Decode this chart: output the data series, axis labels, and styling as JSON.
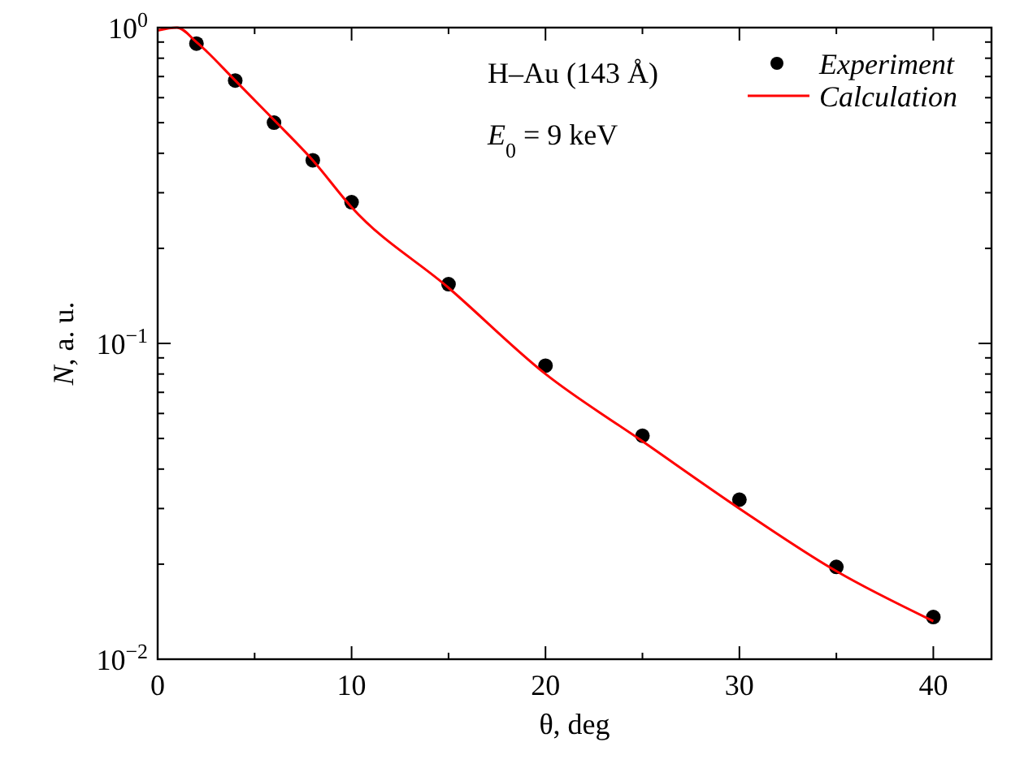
{
  "chart_data": {
    "type": "line",
    "xlabel": "θ, deg",
    "ylabel": "N, a. u.",
    "log": "y",
    "xlim": [
      0,
      43
    ],
    "ylim": [
      0.01,
      1
    ],
    "xticks": [
      0,
      {
        "value": 5,
        "label": null
      },
      10,
      {
        "value": 15,
        "label": null
      },
      20,
      {
        "value": 25,
        "label": null
      },
      30,
      {
        "value": 35,
        "label": null
      },
      40
    ],
    "yticks": [
      {
        "value": 0.01,
        "label": "10$^{−2}$"
      },
      {
        "value": 0.02,
        "label": null
      },
      {
        "value": 0.03,
        "label": null
      },
      {
        "value": 0.04,
        "label": null
      },
      {
        "value": 0.05,
        "label": null
      },
      {
        "value": 0.06,
        "label": null
      },
      {
        "value": 0.07,
        "label": null
      },
      {
        "value": 0.08,
        "label": null
      },
      {
        "value": 0.09,
        "label": null
      },
      {
        "value": 0.1,
        "label": "10$^{−1}$"
      },
      {
        "value": 0.2,
        "label": null
      },
      {
        "value": 0.3,
        "label": null
      },
      {
        "value": 0.4,
        "label": null
      },
      {
        "value": 0.5,
        "label": null
      },
      {
        "value": 0.6,
        "label": null
      },
      {
        "value": 0.7,
        "label": null
      },
      {
        "value": 0.8,
        "label": null
      },
      {
        "value": 0.9,
        "label": null
      },
      {
        "value": 1,
        "label": "10$^{0}$"
      }
    ],
    "grid": false,
    "legend": "top right",
    "annotations": [
      {
        "text": "H–Au (143 Å)"
      },
      {
        "text": "E$_{0}$ = 9 keV"
      }
    ],
    "series": [
      {
        "name": "Experiment",
        "type": "scatter",
        "marker": "circle",
        "color": "#000000",
        "x": [
          2,
          4,
          6,
          8,
          10,
          15,
          20,
          25,
          30,
          35,
          40
        ],
        "values": [
          0.89,
          0.68,
          0.5,
          0.38,
          0.28,
          0.154,
          0.085,
          0.051,
          0.032,
          0.0196,
          0.0136
        ]
      },
      {
        "name": "Calculation",
        "line_style": "solid",
        "color": "#ff0000",
        "x": [
          0,
          1,
          2,
          4,
          6,
          8,
          10,
          15,
          20,
          25,
          30,
          35,
          40
        ],
        "values": [
          0.98,
          1.0,
          0.9,
          0.68,
          0.51,
          0.38,
          0.27,
          0.15,
          0.08,
          0.049,
          0.03,
          0.019,
          0.0132
        ]
      }
    ]
  }
}
